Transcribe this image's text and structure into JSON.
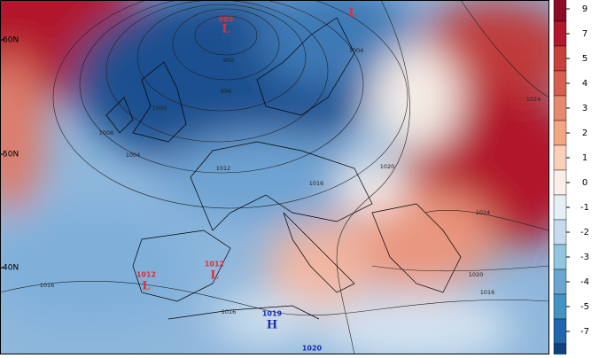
{
  "latitude_labels": [
    "60N",
    "50N",
    "40N"
  ],
  "colorbar": {
    "labels": [
      9,
      7,
      5,
      4,
      3,
      2,
      1,
      0,
      -1,
      -2,
      -3,
      -4,
      -5,
      -7
    ]
  },
  "isobar_labels": [
    "992",
    "996",
    "1000",
    "1004",
    "1004",
    "1008",
    "1012",
    "1016",
    "1020",
    "1024",
    "1024",
    "1020",
    "1016",
    "1016",
    "1016"
  ],
  "pressure_centers": [
    {
      "value": "989",
      "symbol": "L"
    },
    {
      "symbol": "L"
    },
    {
      "value": "1012",
      "symbol": "L"
    },
    {
      "value": "1012",
      "symbol": "L"
    },
    {
      "value": "1019",
      "symbol": "H"
    },
    {
      "value": "1020"
    }
  ]
}
